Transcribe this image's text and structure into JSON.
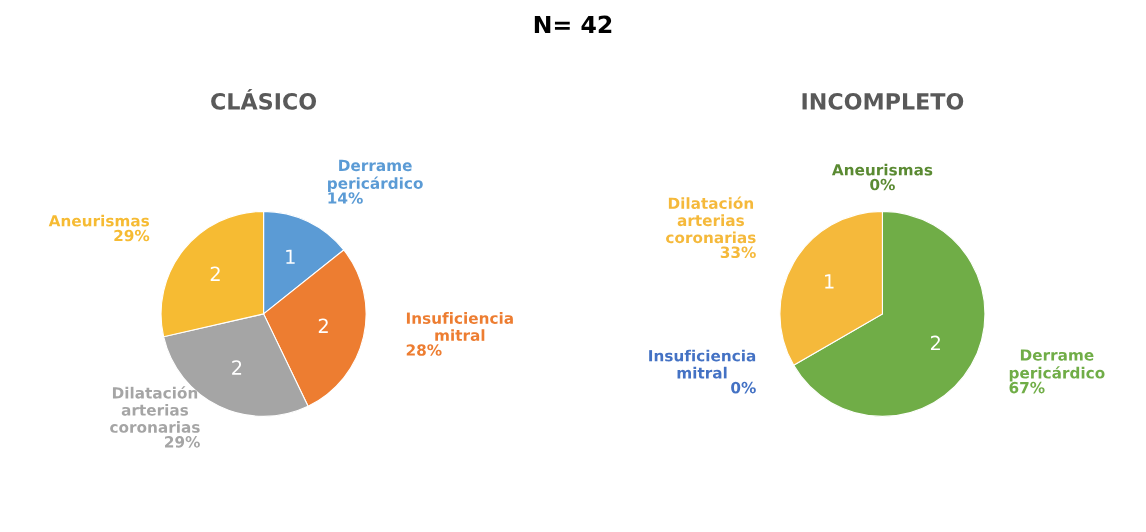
{
  "chart_data": [
    {
      "type": "other",
      "title": "N= 42"
    },
    {
      "type": "pie",
      "title": "CLÁSICO",
      "categories": [
        "Derrame pericárdico",
        "Insuficiencia mitral",
        "Dilatación arterias coronarias",
        "Aneurismas"
      ],
      "values": [
        1,
        2,
        2,
        2
      ],
      "colors": [
        "#5b9bd5",
        "#ed7d31",
        "#a5a5a5",
        "#f6bb33"
      ],
      "value_labels": [
        "1",
        "2",
        "2",
        "2"
      ],
      "annotations": [
        {
          "text": "14%",
          "x": "Derrame pericárdico"
        },
        {
          "text": "28%",
          "x": "Insuficiencia mitral"
        },
        {
          "text": "29%",
          "x": "Dilatación arterias coronarias"
        },
        {
          "text": "29%",
          "x": "Aneurismas"
        }
      ]
    },
    {
      "type": "pie",
      "title": "INCOMPLETO",
      "categories": [
        "Derrame pericárdico",
        "Insuficiencia mitral",
        "Dilatación arterias coronarias",
        "Aneurismas"
      ],
      "values": [
        2,
        0,
        1,
        0
      ],
      "colors": [
        "#70ad47",
        "#4472c4",
        "#f5b93b",
        "#5a8a32"
      ],
      "value_labels": [
        "2",
        null,
        "1",
        null
      ],
      "annotations": [
        {
          "text": "67%",
          "x": "Derrame pericárdico"
        },
        {
          "text": "0%",
          "x": "Insuficiencia mitral"
        },
        {
          "text": "33%",
          "x": "Dilatación arterias coronarias"
        },
        {
          "text": "0%",
          "x": "Aneurismas"
        }
      ]
    }
  ]
}
